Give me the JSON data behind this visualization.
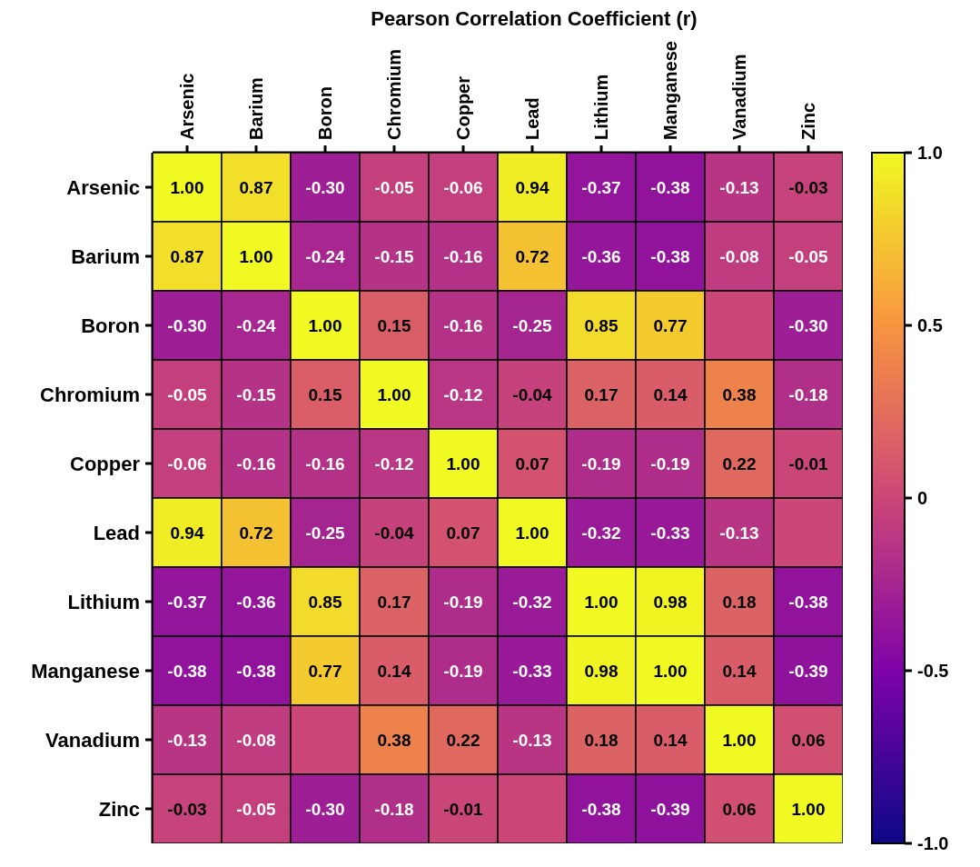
{
  "chart_data": {
    "type": "heatmap",
    "title": "Pearson Correlation Coefficient (r)",
    "categories": [
      "Arsenic",
      "Barium",
      "Boron",
      "Chromium",
      "Copper",
      "Lead",
      "Lithium",
      "Manganese",
      "Vanadium",
      "Zinc"
    ],
    "y_categories": [
      "Arsenic",
      "Barium",
      "Boron",
      "Chromium",
      "Copper",
      "Lead",
      "Lithium",
      "Manganese",
      "Vanadium",
      "Zinc"
    ],
    "cells": [
      [
        1.0,
        0.87,
        -0.3,
        -0.05,
        -0.06,
        0.94,
        -0.37,
        -0.38,
        -0.13,
        -0.03
      ],
      [
        0.87,
        1.0,
        -0.24,
        -0.15,
        -0.16,
        0.72,
        -0.36,
        -0.38,
        -0.08,
        -0.05
      ],
      [
        -0.3,
        -0.24,
        1.0,
        0.15,
        -0.16,
        -0.25,
        0.85,
        0.77,
        0,
        -0.3
      ],
      [
        -0.05,
        -0.15,
        0.15,
        1.0,
        -0.12,
        -0.04,
        0.17,
        0.14,
        0.38,
        -0.18
      ],
      [
        -0.06,
        -0.16,
        -0.16,
        -0.12,
        1.0,
        0.07,
        -0.19,
        -0.19,
        0.22,
        -0.01
      ],
      [
        0.94,
        0.72,
        -0.25,
        -0.04,
        0.07,
        1.0,
        -0.32,
        -0.33,
        -0.13,
        0
      ],
      [
        -0.37,
        -0.36,
        0.85,
        0.17,
        -0.19,
        -0.32,
        1.0,
        0.98,
        0.18,
        -0.38
      ],
      [
        -0.38,
        -0.38,
        0.77,
        0.14,
        -0.19,
        -0.33,
        0.98,
        1.0,
        0.14,
        -0.39
      ],
      [
        -0.13,
        -0.08,
        0,
        0.38,
        0.22,
        -0.13,
        0.18,
        0.14,
        1.0,
        0.06
      ],
      [
        -0.03,
        -0.05,
        -0.3,
        -0.18,
        -0.01,
        0,
        -0.38,
        -0.39,
        0.06,
        1.0
      ]
    ],
    "cell_labels": [
      [
        "1.00",
        "0.87",
        "-0.30",
        "-0.05",
        "-0.06",
        "0.94",
        "-0.37",
        "-0.38",
        "-0.13",
        "-0.03"
      ],
      [
        "0.87",
        "1.00",
        "-0.24",
        "-0.15",
        "-0.16",
        "0.72",
        "-0.36",
        "-0.38",
        "-0.08",
        "-0.05"
      ],
      [
        "-0.30",
        "-0.24",
        "1.00",
        "0.15",
        "-0.16",
        "-0.25",
        "0.85",
        "0.77",
        null,
        "-0.30"
      ],
      [
        "-0.05",
        "-0.15",
        "0.15",
        "1.00",
        "-0.12",
        "-0.04",
        "0.17",
        "0.14",
        "0.38",
        "-0.18"
      ],
      [
        "-0.06",
        "-0.16",
        "-0.16",
        "-0.12",
        "1.00",
        "0.07",
        "-0.19",
        "-0.19",
        "0.22",
        "-0.01"
      ],
      [
        "0.94",
        "0.72",
        "-0.25",
        "-0.04",
        "0.07",
        "1.00",
        "-0.32",
        "-0.33",
        "-0.13",
        null
      ],
      [
        "-0.37",
        "-0.36",
        "0.85",
        "0.17",
        "-0.19",
        "-0.32",
        "1.00",
        "0.98",
        "0.18",
        "-0.38"
      ],
      [
        "-0.38",
        "-0.38",
        "0.77",
        "0.14",
        "-0.19",
        "-0.33",
        "0.98",
        "1.00",
        "0.14",
        "-0.39"
      ],
      [
        "-0.13",
        "-0.08",
        null,
        "0.38",
        "0.22",
        "-0.13",
        "0.18",
        "0.14",
        "1.00",
        "0.06"
      ],
      [
        "-0.03",
        "-0.05",
        "-0.30",
        "-0.18",
        "-0.01",
        null,
        "-0.38",
        "-0.39",
        "0.06",
        "1.00"
      ]
    ],
    "clim": [
      -1.0,
      1.0
    ],
    "cticks": [
      {
        "value": 1,
        "label": "1.0"
      },
      {
        "value": 0.5,
        "label": "0.5"
      },
      {
        "value": 0,
        "label": "0"
      },
      {
        "value": -0.5,
        "label": "-0.5"
      },
      {
        "value": -1,
        "label": "-1.0"
      }
    ]
  }
}
